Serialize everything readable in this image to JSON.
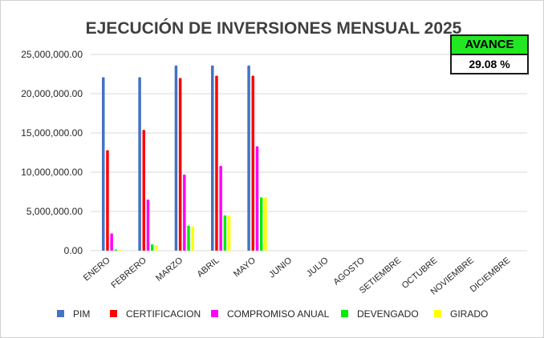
{
  "chart_data": {
    "type": "bar",
    "title": "EJECUCIÓN DE INVERSIONES MENSUAL 2025",
    "categories": [
      "ENERO",
      "FEBRERO",
      "MARZO",
      "ABRIL",
      "MAYO",
      "JUNIO",
      "JULIO",
      "AGOSTO",
      "SETIEMBRE",
      "OCTUBRE",
      "NOVIEMBRE",
      "DICIEMBRE"
    ],
    "ylim": [
      0,
      25000000
    ],
    "yticks": [
      "0.00",
      "5,000,000.00",
      "10,000,000.00",
      "15,000,000.00",
      "20,000,000.00",
      "25,000,000.00"
    ],
    "grid": true,
    "legend_position": "bottom",
    "series": [
      {
        "name": "PIM",
        "color": "#4472c4",
        "values": [
          22100000,
          22100000,
          23600000,
          23600000,
          23600000,
          null,
          null,
          null,
          null,
          null,
          null,
          null
        ]
      },
      {
        "name": "CERTIFICACION",
        "color": "#ff0000",
        "values": [
          12800000,
          15400000,
          22000000,
          22300000,
          22300000,
          null,
          null,
          null,
          null,
          null,
          null,
          null
        ]
      },
      {
        "name": "COMPROMISO ANUAL",
        "color": "#ff00ff",
        "values": [
          2200000,
          6500000,
          9700000,
          10800000,
          13300000,
          null,
          null,
          null,
          null,
          null,
          null,
          null
        ]
      },
      {
        "name": "DEVENGADO",
        "color": "#00ee00",
        "values": [
          150000,
          800000,
          3200000,
          4500000,
          6800000,
          null,
          null,
          null,
          null,
          null,
          null,
          null
        ]
      },
      {
        "name": "GIRADO",
        "color": "#ffff00",
        "values": [
          100000,
          700000,
          3100000,
          4500000,
          6800000,
          null,
          null,
          null,
          null,
          null,
          null,
          null
        ]
      }
    ]
  },
  "avance": {
    "label": "AVANCE",
    "value": "29.08 %",
    "label_color": "#22e822"
  }
}
